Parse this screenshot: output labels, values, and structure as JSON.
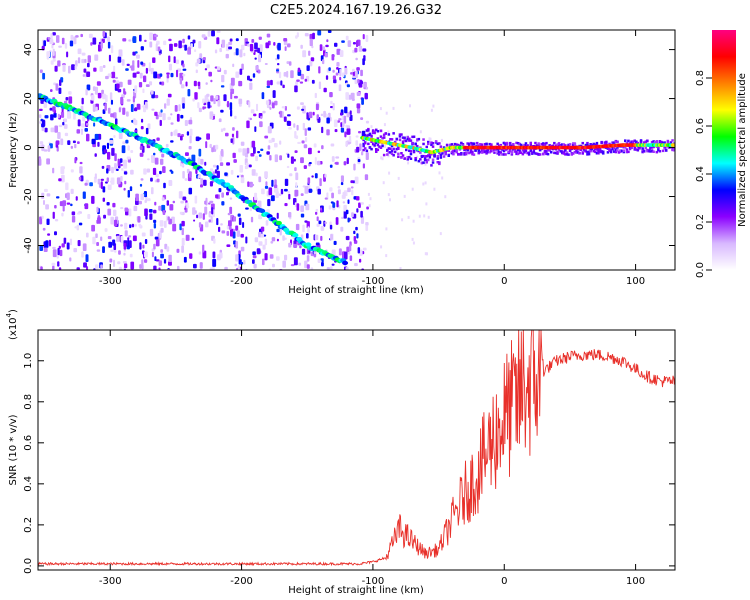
{
  "figure_title": "C2E5.2024.167.19.26.G32",
  "chart_data": [
    {
      "type": "heatmap",
      "panel": "top",
      "title": "",
      "xlabel": "Height of straight line (km)",
      "ylabel": "Frequency (Hz)",
      "xlim": [
        -355,
        130
      ],
      "ylim": [
        -50,
        48
      ],
      "xticks": [
        -300,
        -200,
        -100,
        0,
        100
      ],
      "yticks": [
        -40,
        -20,
        0,
        20,
        40
      ],
      "noise_region_x": [
        -355,
        -105
      ],
      "trace_descending": {
        "x": [
          -355,
          -330,
          -300,
          -270,
          -240,
          -210,
          -180,
          -150,
          -120
        ],
        "y": [
          21,
          16,
          9,
          2,
          -6,
          -16,
          -28,
          -40,
          -47
        ]
      },
      "trace_flat": {
        "x": [
          -108,
          -90,
          -70,
          -55,
          -40,
          -20,
          0,
          30,
          60,
          90,
          110,
          130
        ],
        "y": [
          4,
          2,
          0,
          -2,
          0,
          0,
          0,
          0,
          0,
          1,
          1,
          1
        ]
      },
      "colorbar": {
        "label": "Normalized spectral amplitude",
        "ticks": [
          "0.0",
          "0.2",
          "0.4",
          "0.6",
          "0.8"
        ],
        "tick_values": [
          0.0,
          0.2,
          0.4,
          0.6,
          0.8
        ],
        "range": [
          0,
          1
        ],
        "colormap": [
          "#ffffff",
          "#d8b8ff",
          "#8b00ff",
          "#0000ff",
          "#00ffff",
          "#00ff00",
          "#ffff00",
          "#ff8000",
          "#ff0000",
          "#ff0080"
        ]
      },
      "grid": false
    },
    {
      "type": "line",
      "panel": "bottom",
      "title": "",
      "xlabel": "Height of straight line (km)",
      "ylabel": "SNR (10 * v/v)",
      "yscale_label": "(x10",
      "yscale_exp": "4",
      "yscale_close": ")",
      "xlim": [
        -355,
        130
      ],
      "ylim": [
        -0.02,
        1.15
      ],
      "xticks": [
        -300,
        -200,
        -100,
        0,
        100
      ],
      "yticks": [
        "0.0",
        "0.2",
        "0.4",
        "0.6",
        "0.8",
        "1.0"
      ],
      "ytick_values": [
        0.0,
        0.2,
        0.4,
        0.6,
        0.8,
        1.0
      ],
      "color": "#e8302a",
      "envelope": {
        "x": [
          -355,
          -300,
          -200,
          -110,
          -100,
          -90,
          -80,
          -70,
          -60,
          -50,
          -40,
          -30,
          -20,
          -10,
          0,
          10,
          15,
          20,
          30,
          40,
          50,
          60,
          70,
          80,
          90,
          100,
          110,
          120,
          130
        ],
        "y": [
          0.01,
          0.01,
          0.01,
          0.01,
          0.02,
          0.04,
          0.18,
          0.12,
          0.06,
          0.08,
          0.22,
          0.35,
          0.45,
          0.6,
          0.72,
          0.8,
          0.88,
          0.9,
          0.95,
          1.0,
          1.02,
          1.03,
          1.03,
          1.02,
          1.0,
          0.96,
          0.92,
          0.9,
          0.9
        ]
      },
      "grid": false
    }
  ]
}
